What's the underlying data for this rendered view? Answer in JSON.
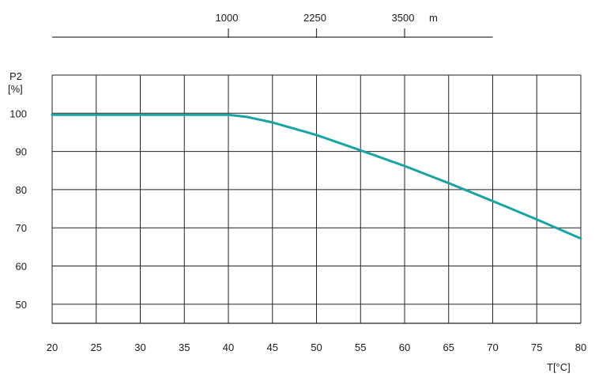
{
  "chart_data": {
    "type": "line",
    "title": "",
    "xlabel": "T[°C]",
    "ylabel_line1": "P2",
    "ylabel_line2": "[%]",
    "xlim": [
      20,
      80
    ],
    "ylim": [
      45,
      110
    ],
    "xticks": [
      20,
      25,
      30,
      35,
      40,
      45,
      50,
      55,
      60,
      65,
      70,
      75,
      80
    ],
    "yticks": [
      50,
      60,
      70,
      80,
      90,
      100
    ],
    "xtick_labels": [
      "20",
      "25",
      "30",
      "35",
      "40",
      "45",
      "50",
      "55",
      "60",
      "65",
      "70",
      "75",
      "80"
    ],
    "ytick_labels": [
      "50",
      "60",
      "70",
      "80",
      "90",
      "100"
    ],
    "grid": true,
    "series": [
      {
        "color": "#1aa3a3",
        "x": [
          20,
          25,
          30,
          35,
          40,
          42,
          45,
          50,
          55,
          60,
          65,
          70,
          75,
          80
        ],
        "y": [
          99.6,
          99.6,
          99.6,
          99.6,
          99.6,
          99.1,
          97.6,
          94.3,
          90.3,
          86.2,
          81.7,
          77.0,
          72.2,
          67.2
        ]
      }
    ],
    "altitude_axis": {
      "unit": "m",
      "ticks": [
        {
          "label": "1000",
          "t": 40
        },
        {
          "label": "2250",
          "t": 50
        },
        {
          "label": "3500",
          "t": 60
        }
      ],
      "range_t": [
        20,
        70
      ]
    }
  }
}
